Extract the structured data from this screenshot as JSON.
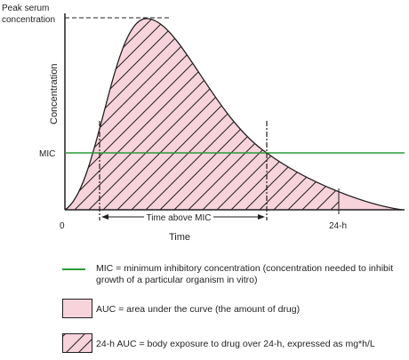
{
  "diagram": {
    "y_axis_label": "Concentration",
    "x_axis_label": "Time",
    "peak_label_line1": "Peak serum",
    "peak_label_line2": "concentration",
    "mic_label": "MIC",
    "origin_label": "0",
    "time_24h_label": "24-h",
    "time_above_mic_label": "Time above MIC",
    "colors": {
      "auc_fill": "#f7d3dc",
      "mic_line": "#2a9a3a",
      "ink": "#231f20"
    }
  },
  "legend": {
    "mic_line_1": "MIC = minimum inhibitory concentration (concentration needed to inhibit",
    "mic_line_2": "growth of a particular organism in vitro)",
    "auc": "AUC = area under the curve (the amount of drug)",
    "auc24": "24-h AUC = body exposure to drug over 24-h, expressed as mg*h/L"
  }
}
